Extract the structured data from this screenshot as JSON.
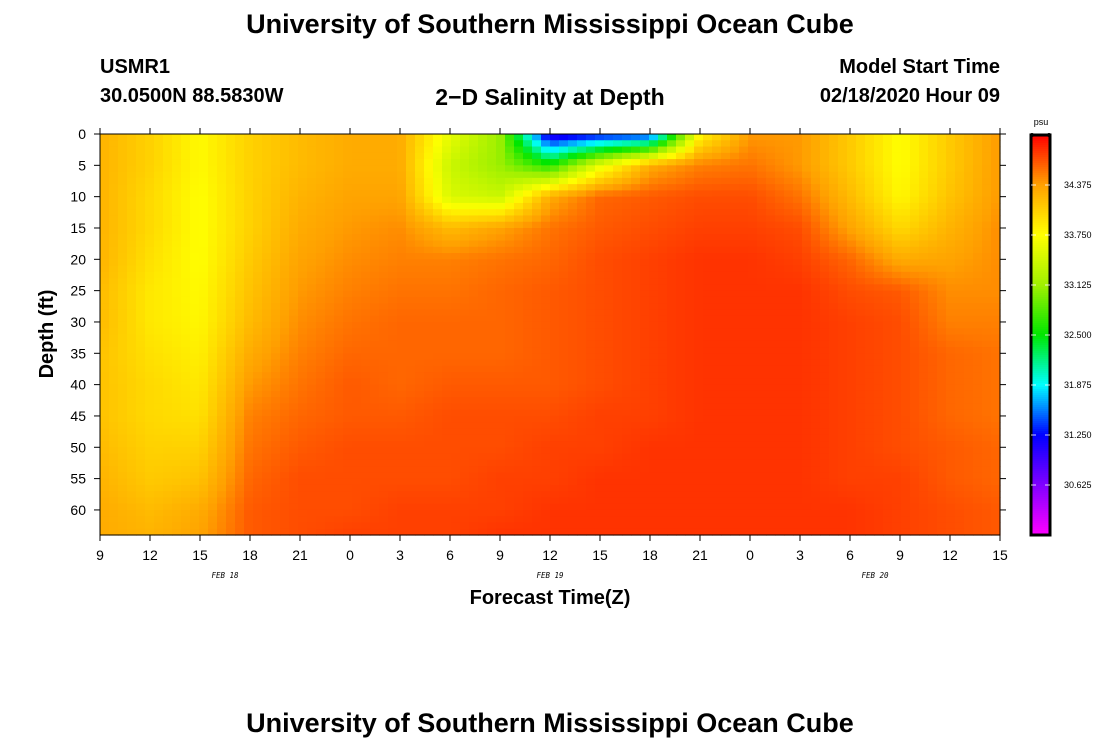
{
  "header": {
    "main_title": "University of Southern Mississippi Ocean Cube",
    "station_id": "USMR1",
    "station_coords": "30.0500N 88.5830W",
    "chart_title": "2−D Salinity at Depth",
    "start_label": "Model Start Time",
    "start_value": "02/18/2020 Hour 09"
  },
  "footer": {
    "title": "University of Southern Mississippi Ocean Cube"
  },
  "chart_data": {
    "type": "heatmap",
    "title": "2−D Salinity at Depth",
    "xlabel": "Forecast Time(Z)",
    "ylabel": "Depth (ft)",
    "x_range_hours": [
      0,
      54
    ],
    "x_ticks": [
      {
        "hour": 0,
        "label": "9"
      },
      {
        "hour": 3,
        "label": "12"
      },
      {
        "hour": 6,
        "label": "15"
      },
      {
        "hour": 9,
        "label": "18"
      },
      {
        "hour": 12,
        "label": "21"
      },
      {
        "hour": 15,
        "label": "0"
      },
      {
        "hour": 18,
        "label": "3"
      },
      {
        "hour": 21,
        "label": "6"
      },
      {
        "hour": 24,
        "label": "9"
      },
      {
        "hour": 27,
        "label": "12"
      },
      {
        "hour": 30,
        "label": "15"
      },
      {
        "hour": 33,
        "label": "18"
      },
      {
        "hour": 36,
        "label": "21"
      },
      {
        "hour": 39,
        "label": "0"
      },
      {
        "hour": 42,
        "label": "3"
      },
      {
        "hour": 45,
        "label": "6"
      },
      {
        "hour": 48,
        "label": "9"
      },
      {
        "hour": 51,
        "label": "12"
      },
      {
        "hour": 54,
        "label": "15"
      }
    ],
    "date_labels": [
      {
        "hour": 7.5,
        "label": "FEB 18"
      },
      {
        "hour": 27,
        "label": "FEB 19"
      },
      {
        "hour": 46.5,
        "label": "FEB 20"
      }
    ],
    "y_range": [
      0,
      64
    ],
    "y_ticks": [
      0,
      5,
      10,
      15,
      20,
      25,
      30,
      35,
      40,
      45,
      50,
      55,
      60
    ],
    "grid": false,
    "colorbar": {
      "unit": "psu",
      "range": [
        30.0,
        35.0
      ],
      "ticks": [
        30.625,
        31.25,
        31.875,
        32.5,
        33.125,
        33.75,
        34.375
      ],
      "tick_labels": [
        "30.625",
        "31.250",
        "31.875",
        "32.500",
        "33.125",
        "33.750",
        "34.375"
      ]
    },
    "depths_ft": [
      0,
      5,
      10,
      15,
      20,
      25,
      30,
      35,
      40,
      45,
      50,
      55,
      60,
      64
    ],
    "hours": [
      0,
      3,
      6,
      9,
      12,
      15,
      18,
      21,
      24,
      27,
      30,
      33,
      36,
      39,
      42,
      45,
      48,
      51,
      54
    ],
    "salinity_psu": [
      [
        34.25,
        34.05,
        33.78,
        34.05,
        34.2,
        34.3,
        34.3,
        33.6,
        33.1,
        31.0,
        31.2,
        31.3,
        33.8,
        34.4,
        34.4,
        34.1,
        33.75,
        34.1,
        34.4
      ],
      [
        34.25,
        34.05,
        33.78,
        34.05,
        34.2,
        34.3,
        34.3,
        33.4,
        33.1,
        32.6,
        33.6,
        34.3,
        34.5,
        34.55,
        34.4,
        34.1,
        33.75,
        34.1,
        34.4
      ],
      [
        34.25,
        34.0,
        33.75,
        34.05,
        34.25,
        34.35,
        34.35,
        33.5,
        33.4,
        34.3,
        34.6,
        34.65,
        34.7,
        34.7,
        34.55,
        34.2,
        33.8,
        34.15,
        34.4
      ],
      [
        34.25,
        34.0,
        33.75,
        34.05,
        34.3,
        34.4,
        34.45,
        34.2,
        34.35,
        34.55,
        34.65,
        34.7,
        34.75,
        34.75,
        34.7,
        34.35,
        34.0,
        34.25,
        34.45
      ],
      [
        34.25,
        33.95,
        33.75,
        34.1,
        34.35,
        34.45,
        34.5,
        34.5,
        34.55,
        34.6,
        34.7,
        34.75,
        34.8,
        34.8,
        34.75,
        34.6,
        34.3,
        34.35,
        34.45
      ],
      [
        34.2,
        33.9,
        33.78,
        34.15,
        34.4,
        34.5,
        34.55,
        34.55,
        34.6,
        34.65,
        34.7,
        34.75,
        34.8,
        34.8,
        34.8,
        34.7,
        34.65,
        34.45,
        34.45
      ],
      [
        34.2,
        33.9,
        33.8,
        34.2,
        34.45,
        34.55,
        34.6,
        34.6,
        34.6,
        34.65,
        34.7,
        34.75,
        34.8,
        34.8,
        34.8,
        34.75,
        34.7,
        34.5,
        34.5
      ],
      [
        34.15,
        33.95,
        33.85,
        34.3,
        34.5,
        34.6,
        34.6,
        34.6,
        34.6,
        34.65,
        34.7,
        34.75,
        34.8,
        34.8,
        34.8,
        34.75,
        34.7,
        34.6,
        34.55
      ],
      [
        34.15,
        34.0,
        33.9,
        34.4,
        34.55,
        34.65,
        34.6,
        34.65,
        34.65,
        34.65,
        34.7,
        34.75,
        34.8,
        34.8,
        34.8,
        34.75,
        34.7,
        34.6,
        34.55
      ],
      [
        34.15,
        34.0,
        33.95,
        34.5,
        34.6,
        34.65,
        34.65,
        34.7,
        34.7,
        34.7,
        34.75,
        34.75,
        34.8,
        34.8,
        34.8,
        34.75,
        34.7,
        34.6,
        34.55
      ],
      [
        34.2,
        34.05,
        34.05,
        34.55,
        34.65,
        34.7,
        34.7,
        34.7,
        34.7,
        34.75,
        34.75,
        34.8,
        34.8,
        34.8,
        34.8,
        34.75,
        34.7,
        34.65,
        34.6
      ],
      [
        34.25,
        34.1,
        34.15,
        34.6,
        34.7,
        34.7,
        34.7,
        34.7,
        34.75,
        34.75,
        34.8,
        34.8,
        34.8,
        34.8,
        34.8,
        34.75,
        34.75,
        34.65,
        34.6
      ],
      [
        34.3,
        34.2,
        34.3,
        34.65,
        34.7,
        34.7,
        34.75,
        34.75,
        34.75,
        34.8,
        34.8,
        34.8,
        34.8,
        34.8,
        34.8,
        34.8,
        34.75,
        34.7,
        34.65
      ],
      [
        34.3,
        34.25,
        34.35,
        34.65,
        34.7,
        34.75,
        34.75,
        34.75,
        34.8,
        34.8,
        34.8,
        34.8,
        34.8,
        34.8,
        34.8,
        34.8,
        34.75,
        34.7,
        34.65
      ]
    ]
  }
}
